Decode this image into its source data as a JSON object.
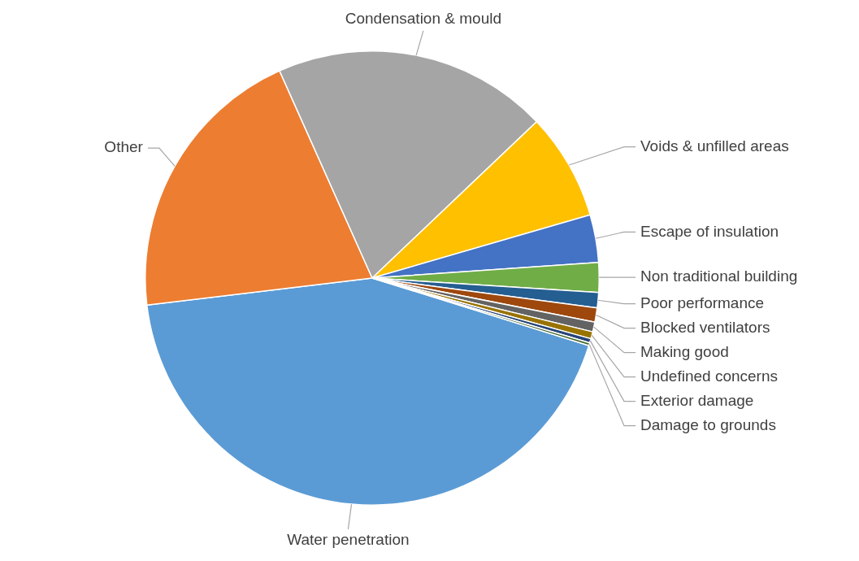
{
  "chart_data": {
    "type": "pie",
    "categories": [
      "Water penetration",
      "Other",
      "Condensation & mould",
      "Voids & unfilled areas",
      "Escape of insulation",
      "Non traditional building",
      "Poor performance",
      "Blocked ventilators",
      "Making good",
      "Undefined concerns",
      "Exterior damage",
      "Damage to grounds"
    ],
    "values": [
      43.3,
      20.2,
      19.6,
      7.6,
      3.4,
      2.1,
      1.1,
      1.0,
      0.7,
      0.5,
      0.3,
      0.2
    ],
    "colors": [
      "#5b9bd5",
      "#ed7d31",
      "#a5a5a5",
      "#ffc000",
      "#4472c4",
      "#70ad47",
      "#255e91",
      "#9e480e",
      "#636363",
      "#997300",
      "#264478",
      "#43682b"
    ],
    "legend": false
  }
}
